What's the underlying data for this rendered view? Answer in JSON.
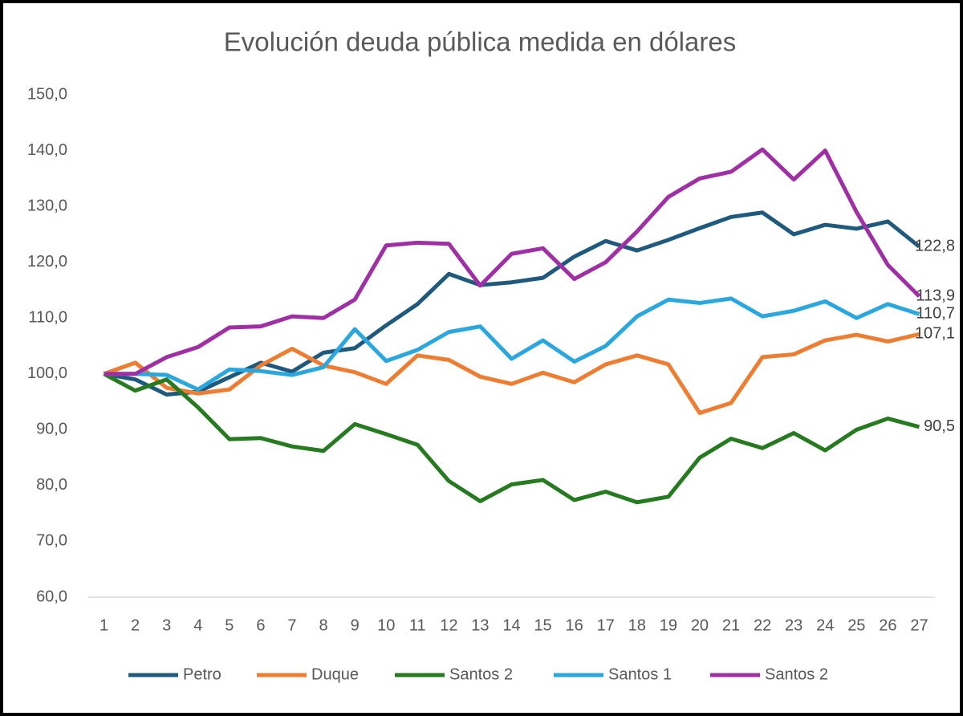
{
  "chart_data": {
    "type": "line",
    "title": "Evolución deuda pública medida en dólares",
    "categories": [
      "1",
      "2",
      "3",
      "4",
      "5",
      "6",
      "7",
      "8",
      "9",
      "10",
      "11",
      "12",
      "13",
      "14",
      "15",
      "16",
      "17",
      "18",
      "19",
      "20",
      "21",
      "22",
      "23",
      "24",
      "25",
      "26",
      "27"
    ],
    "series": [
      {
        "name": "Petro",
        "color": "#1f5a7e",
        "values": [
          100,
          99,
          96.3,
          96.8,
          99.4,
          102,
          100.4,
          103.8,
          104.6,
          108.7,
          112.5,
          117.9,
          115.9,
          116.4,
          117.2,
          121,
          123.8,
          122.1,
          124,
          126.1,
          128.1,
          128.9,
          125,
          126.7,
          126,
          127.3,
          122.8
        ],
        "value_labels": [
          null,
          null,
          null,
          null,
          null,
          null,
          null,
          null,
          null,
          null,
          null,
          null,
          null,
          null,
          null,
          null,
          null,
          null,
          null,
          null,
          null,
          null,
          null,
          null,
          null,
          null,
          "122,8"
        ]
      },
      {
        "name": "Duque",
        "color": "#ee7d31",
        "values": [
          100,
          102,
          97.5,
          96.5,
          97.2,
          101.5,
          104.5,
          101.5,
          100.3,
          98.2,
          103.3,
          102.5,
          99.5,
          98.2,
          100.2,
          98.5,
          101.7,
          103.3,
          101.7,
          93,
          94.8,
          103,
          103.5,
          106,
          107,
          105.8,
          107.1
        ],
        "value_labels": [
          null,
          null,
          null,
          null,
          null,
          null,
          null,
          null,
          null,
          null,
          null,
          null,
          null,
          null,
          null,
          null,
          null,
          null,
          null,
          null,
          null,
          null,
          null,
          null,
          null,
          null,
          "107,1"
        ]
      },
      {
        "name": "Santos 2",
        "color": "#267a1f",
        "values": [
          100,
          97,
          99,
          94,
          88.3,
          88.5,
          87,
          86.2,
          91,
          89.2,
          87.3,
          80.8,
          77.2,
          80.2,
          81,
          77.4,
          78.9,
          77,
          78,
          85,
          88.4,
          86.7,
          89.4,
          86.3,
          90,
          92,
          90.5
        ],
        "value_labels": [
          null,
          null,
          null,
          null,
          null,
          null,
          null,
          null,
          null,
          null,
          null,
          null,
          null,
          null,
          null,
          null,
          null,
          null,
          null,
          null,
          null,
          null,
          null,
          null,
          null,
          null,
          "90,5"
        ]
      },
      {
        "name": "Santos 1",
        "color": "#2aa7de",
        "values": [
          100,
          100,
          99.8,
          97.2,
          100.8,
          100.5,
          99.8,
          101.2,
          108,
          102.3,
          104.3,
          107.5,
          108.5,
          102.7,
          106,
          102.2,
          105,
          110.3,
          113.3,
          112.7,
          113.5,
          110.3,
          111.3,
          113,
          110,
          112.5,
          110.7
        ],
        "value_labels": [
          null,
          null,
          null,
          null,
          null,
          null,
          null,
          null,
          null,
          null,
          null,
          null,
          null,
          null,
          null,
          null,
          null,
          null,
          null,
          null,
          null,
          null,
          null,
          null,
          null,
          null,
          "110,7"
        ]
      },
      {
        "name": "Santos 2",
        "color": "#a02fa6",
        "values": [
          100,
          100,
          103,
          104.8,
          108.3,
          108.5,
          110.3,
          110,
          113.3,
          123,
          123.5,
          123.3,
          115.8,
          121.5,
          122.5,
          117,
          120,
          125.5,
          131.7,
          135,
          136.2,
          140.2,
          134.8,
          140,
          129,
          119.5,
          113.9
        ],
        "value_labels": [
          null,
          null,
          null,
          null,
          null,
          null,
          null,
          null,
          null,
          null,
          null,
          null,
          null,
          null,
          null,
          null,
          null,
          null,
          null,
          null,
          null,
          null,
          null,
          null,
          null,
          null,
          "113,9"
        ]
      }
    ],
    "ylim": [
      60,
      150
    ],
    "yticks": [
      {
        "value": 60,
        "label": "60,0"
      },
      {
        "value": 70,
        "label": "70,0"
      },
      {
        "value": 80,
        "label": "80,0"
      },
      {
        "value": 90,
        "label": "90,0"
      },
      {
        "value": 100,
        "label": "100,0"
      },
      {
        "value": 110,
        "label": "110,0"
      },
      {
        "value": 120,
        "label": "120,0"
      },
      {
        "value": 130,
        "label": "130,0"
      },
      {
        "value": 140,
        "label": "140,0"
      },
      {
        "value": 150,
        "label": "150,0"
      }
    ],
    "grid": false,
    "legend": "bottom"
  }
}
